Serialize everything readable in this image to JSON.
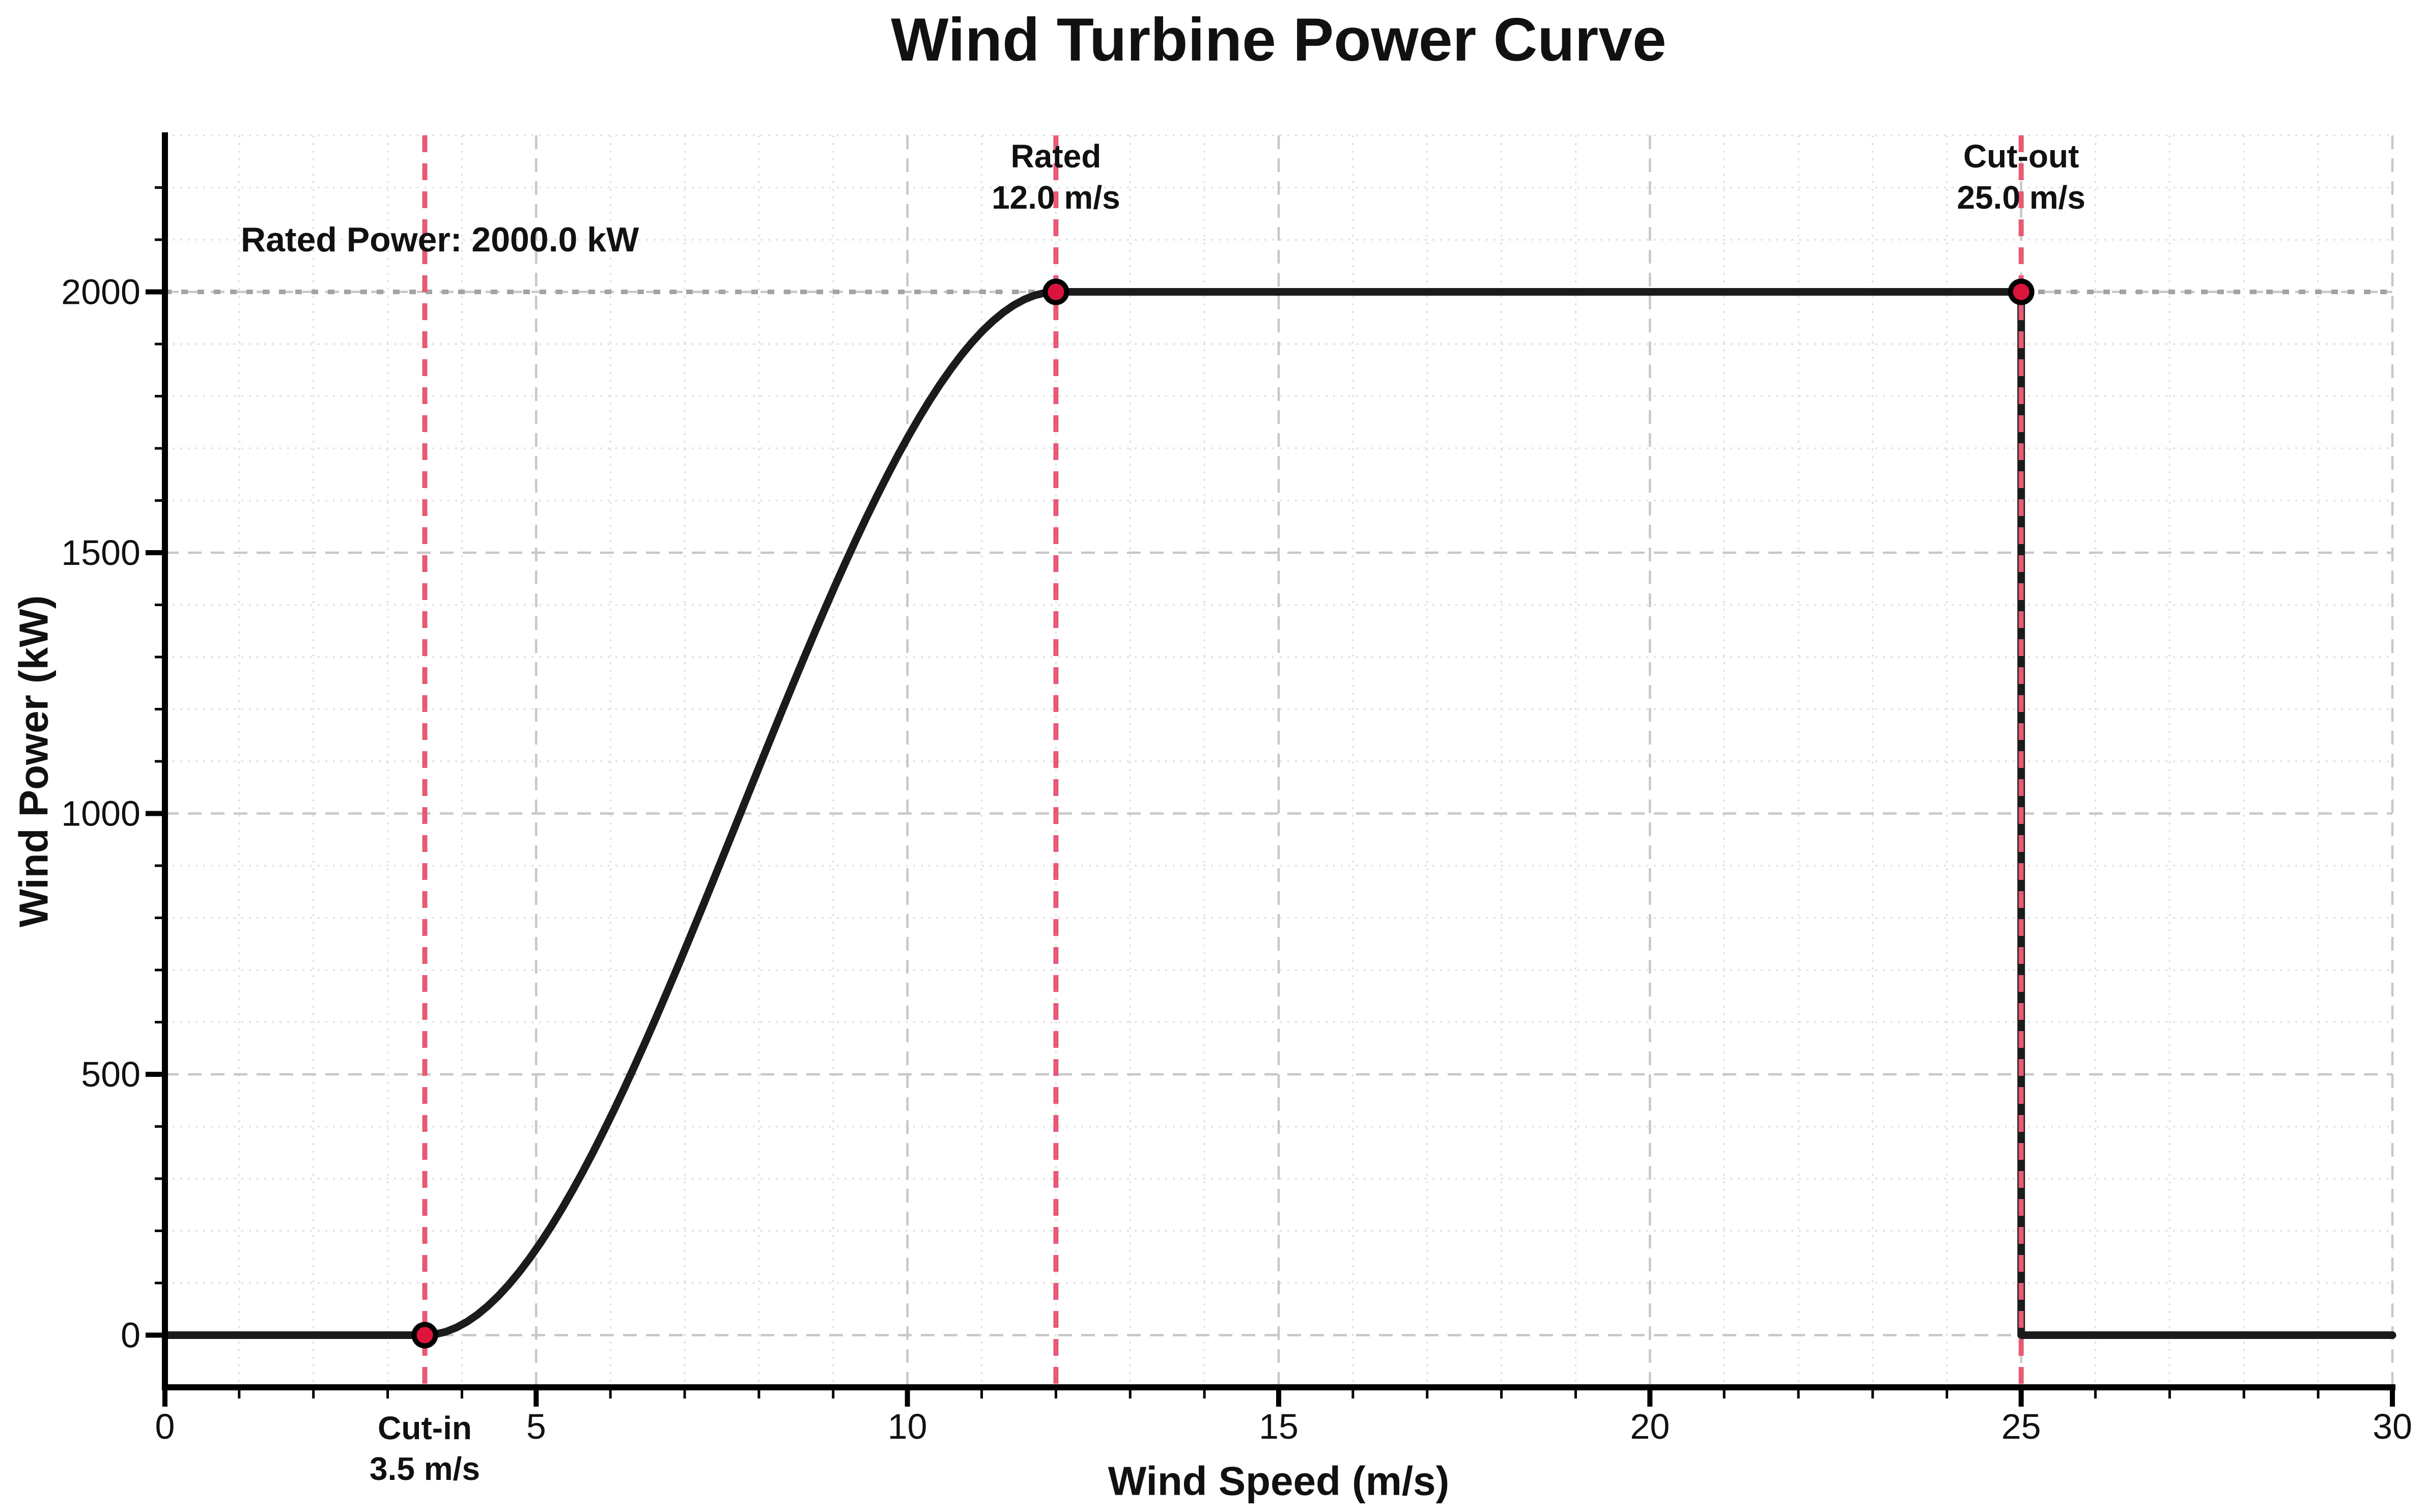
{
  "chart_data": {
    "type": "line",
    "title": "Wind Turbine Power Curve",
    "xlabel": "Wind Speed (m/s)",
    "ylabel": "Wind Power (kW)",
    "xlim": [
      0,
      30
    ],
    "ylim": [
      -100,
      2300
    ],
    "x_ticks": [
      0,
      5,
      10,
      15,
      20,
      25,
      30
    ],
    "y_ticks": [
      0,
      500,
      1000,
      1500,
      2000
    ],
    "x_minor_step": 1,
    "y_minor_step": 100,
    "grid": {
      "major": "dashed",
      "minor": "dotted"
    },
    "legend": null,
    "turbine": {
      "cut_in_ms": 3.5,
      "rated_ms": 12.0,
      "cut_out_ms": 25.0,
      "rated_power_kw": 2000.0
    },
    "series": [
      {
        "name": "power-curve",
        "points": [
          [
            0,
            0
          ],
          [
            1,
            0
          ],
          [
            2,
            0
          ],
          [
            3,
            0
          ],
          [
            3.5,
            0
          ],
          [
            4,
            20
          ],
          [
            4.5,
            77
          ],
          [
            5,
            165
          ],
          [
            5.5,
            280
          ],
          [
            6,
            417
          ],
          [
            6.5,
            571
          ],
          [
            7,
            738
          ],
          [
            7.5,
            912
          ],
          [
            8,
            1088
          ],
          [
            8.5,
            1262
          ],
          [
            9,
            1429
          ],
          [
            9.5,
            1583
          ],
          [
            10,
            1720
          ],
          [
            10.5,
            1835
          ],
          [
            11,
            1923
          ],
          [
            11.5,
            1980
          ],
          [
            12,
            2000
          ],
          [
            15,
            2000
          ],
          [
            20,
            2000
          ],
          [
            25,
            2000
          ],
          [
            25,
            0
          ],
          [
            26,
            0
          ],
          [
            28,
            0
          ],
          [
            30,
            0
          ]
        ]
      }
    ],
    "markers": [
      {
        "name": "cut-in",
        "x": 3.5,
        "y": 0
      },
      {
        "name": "rated",
        "x": 12,
        "y": 2000
      },
      {
        "name": "cut-out",
        "x": 25,
        "y": 2000
      }
    ],
    "reference_lines": {
      "rated_power_hline_kw": 2000,
      "vlines_ms": [
        3.5,
        12.0,
        25.0
      ]
    },
    "annotations": {
      "rated_power_text": "Rated Power: 2000.0 kW",
      "cut_in": {
        "line1": "Cut-in",
        "line2": "3.5 m/s"
      },
      "rated": {
        "line1": "Rated",
        "line2": "12.0 m/s"
      },
      "cut_out": {
        "line1": "Cut-out",
        "line2": "25.0 m/s"
      }
    },
    "colors": {
      "curve": "#1b1b1b",
      "marker_fill": "#dc143c",
      "marker_edge": "#000000",
      "vline": "#e65a76",
      "annotation_red": "#d5173e",
      "rated_hline": "#a3a3a3",
      "grid_major": "#c7c7c7",
      "grid_minor": "#e2e2e2",
      "axis": "#000000",
      "text": "#111111"
    }
  }
}
